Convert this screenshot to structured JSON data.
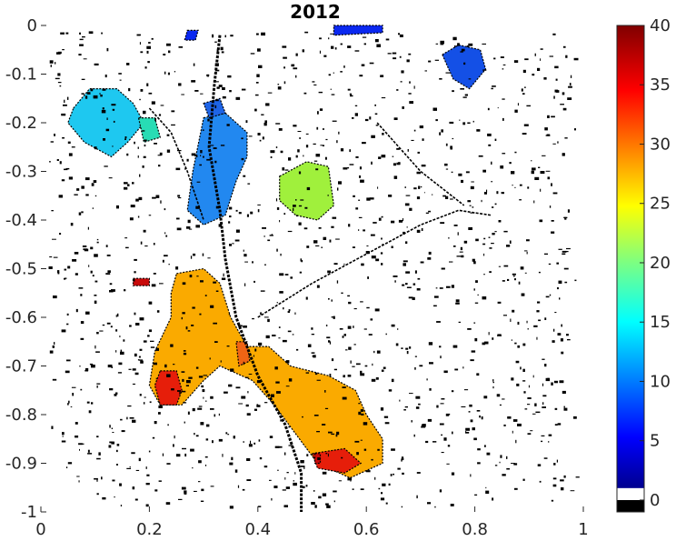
{
  "chart_data": {
    "type": "heatmap",
    "title": "2012",
    "xlabel": "",
    "ylabel": "",
    "xlim": [
      0,
      1
    ],
    "ylim": [
      -1,
      0
    ],
    "x_ticks": [
      0,
      0.2,
      0.4,
      0.6,
      0.8,
      1
    ],
    "x_tick_labels": [
      "0",
      "0.2",
      "0.4",
      "0.6",
      "0.8",
      "1"
    ],
    "y_ticks": [
      0,
      -0.1,
      -0.2,
      -0.3,
      -0.4,
      -0.5,
      -0.6,
      -0.7,
      -0.8,
      -0.9,
      -1
    ],
    "y_tick_labels": [
      "0",
      "-0.1",
      "-0.2",
      "-0.3",
      "-0.4",
      "-0.5",
      "-0.6",
      "-0.7",
      "-0.8",
      "-0.9",
      "-1"
    ],
    "grid": false,
    "colorbar": {
      "lim": [
        -1,
        40
      ],
      "ticks": [
        0,
        5,
        10,
        15,
        20,
        25,
        30,
        35,
        40
      ],
      "tick_labels": [
        "0",
        "5",
        "10",
        "15",
        "20",
        "25",
        "30",
        "35",
        "40"
      ],
      "colormap": "jet",
      "special_bands": [
        {
          "from": -1,
          "to": 0,
          "color": "#000000"
        },
        {
          "from": 0,
          "to": 1,
          "color": "#ffffff"
        }
      ]
    },
    "regions": [
      {
        "value": 15,
        "color": "#1ec8f0",
        "polygon": [
          [
            0.06,
            -0.17
          ],
          [
            0.09,
            -0.13
          ],
          [
            0.14,
            -0.13
          ],
          [
            0.17,
            -0.16
          ],
          [
            0.19,
            -0.2
          ],
          [
            0.16,
            -0.24
          ],
          [
            0.13,
            -0.27
          ],
          [
            0.08,
            -0.24
          ],
          [
            0.05,
            -0.2
          ]
        ]
      },
      {
        "value": 17,
        "color": "#28dcb4",
        "polygon": [
          [
            0.18,
            -0.19
          ],
          [
            0.21,
            -0.19
          ],
          [
            0.22,
            -0.23
          ],
          [
            0.19,
            -0.24
          ]
        ]
      },
      {
        "value": 11,
        "color": "#2288f0",
        "polygon": [
          [
            0.3,
            -0.19
          ],
          [
            0.34,
            -0.18
          ],
          [
            0.38,
            -0.22
          ],
          [
            0.38,
            -0.27
          ],
          [
            0.36,
            -0.32
          ],
          [
            0.34,
            -0.39
          ],
          [
            0.3,
            -0.41
          ],
          [
            0.27,
            -0.38
          ],
          [
            0.28,
            -0.3
          ]
        ]
      },
      {
        "value": 10,
        "color": "#1e64e6",
        "polygon": [
          [
            0.3,
            -0.16
          ],
          [
            0.33,
            -0.15
          ],
          [
            0.34,
            -0.18
          ],
          [
            0.31,
            -0.19
          ]
        ]
      },
      {
        "value": 22,
        "color": "#a0f03c",
        "polygon": [
          [
            0.44,
            -0.31
          ],
          [
            0.49,
            -0.28
          ],
          [
            0.53,
            -0.29
          ],
          [
            0.54,
            -0.37
          ],
          [
            0.51,
            -0.4
          ],
          [
            0.47,
            -0.39
          ],
          [
            0.44,
            -0.36
          ]
        ]
      },
      {
        "value": 8,
        "color": "#1450e6",
        "polygon": [
          [
            0.74,
            -0.06
          ],
          [
            0.77,
            -0.04
          ],
          [
            0.81,
            -0.05
          ],
          [
            0.82,
            -0.09
          ],
          [
            0.79,
            -0.13
          ],
          [
            0.76,
            -0.11
          ]
        ]
      },
      {
        "value": 6,
        "color": "#0a28f0",
        "polygon": [
          [
            0.54,
            0.0
          ],
          [
            0.63,
            0.0
          ],
          [
            0.63,
            -0.015
          ],
          [
            0.54,
            -0.02
          ]
        ]
      },
      {
        "value": 5,
        "color": "#0a28f0",
        "polygon": [
          [
            0.27,
            -0.01
          ],
          [
            0.29,
            -0.01
          ],
          [
            0.285,
            -0.03
          ],
          [
            0.265,
            -0.03
          ]
        ]
      },
      {
        "value": 28,
        "color": "#faaa00",
        "polygon": [
          [
            0.25,
            -0.51
          ],
          [
            0.3,
            -0.5
          ],
          [
            0.33,
            -0.53
          ],
          [
            0.35,
            -0.6
          ],
          [
            0.38,
            -0.66
          ],
          [
            0.42,
            -0.66
          ],
          [
            0.46,
            -0.7
          ],
          [
            0.53,
            -0.72
          ],
          [
            0.58,
            -0.75
          ],
          [
            0.6,
            -0.8
          ],
          [
            0.63,
            -0.85
          ],
          [
            0.63,
            -0.9
          ],
          [
            0.57,
            -0.93
          ],
          [
            0.51,
            -0.9
          ],
          [
            0.47,
            -0.84
          ],
          [
            0.43,
            -0.78
          ],
          [
            0.39,
            -0.73
          ],
          [
            0.33,
            -0.7
          ],
          [
            0.3,
            -0.73
          ],
          [
            0.26,
            -0.78
          ],
          [
            0.22,
            -0.78
          ],
          [
            0.2,
            -0.74
          ],
          [
            0.21,
            -0.67
          ],
          [
            0.24,
            -0.6
          ],
          [
            0.24,
            -0.55
          ]
        ]
      },
      {
        "value": 36,
        "color": "#e61e0a",
        "polygon": [
          [
            0.22,
            -0.71
          ],
          [
            0.25,
            -0.71
          ],
          [
            0.26,
            -0.75
          ],
          [
            0.25,
            -0.78
          ],
          [
            0.22,
            -0.78
          ],
          [
            0.21,
            -0.74
          ]
        ]
      },
      {
        "value": 33,
        "color": "#f06414",
        "polygon": [
          [
            0.36,
            -0.65
          ],
          [
            0.38,
            -0.65
          ],
          [
            0.385,
            -0.69
          ],
          [
            0.365,
            -0.7
          ]
        ]
      },
      {
        "value": 36,
        "color": "#e61e0a",
        "polygon": [
          [
            0.5,
            -0.88
          ],
          [
            0.56,
            -0.87
          ],
          [
            0.59,
            -0.9
          ],
          [
            0.56,
            -0.92
          ],
          [
            0.51,
            -0.91
          ]
        ]
      },
      {
        "value": 38,
        "color": "#c80a0a",
        "polygon": [
          [
            0.505,
            -0.88
          ],
          [
            0.515,
            -0.88
          ],
          [
            0.515,
            -0.9
          ],
          [
            0.505,
            -0.9
          ]
        ]
      },
      {
        "value": 38,
        "color": "#c80a0a",
        "polygon": [
          [
            0.17,
            -0.52
          ],
          [
            0.2,
            -0.52
          ],
          [
            0.2,
            -0.535
          ],
          [
            0.17,
            -0.535
          ]
        ]
      }
    ]
  }
}
